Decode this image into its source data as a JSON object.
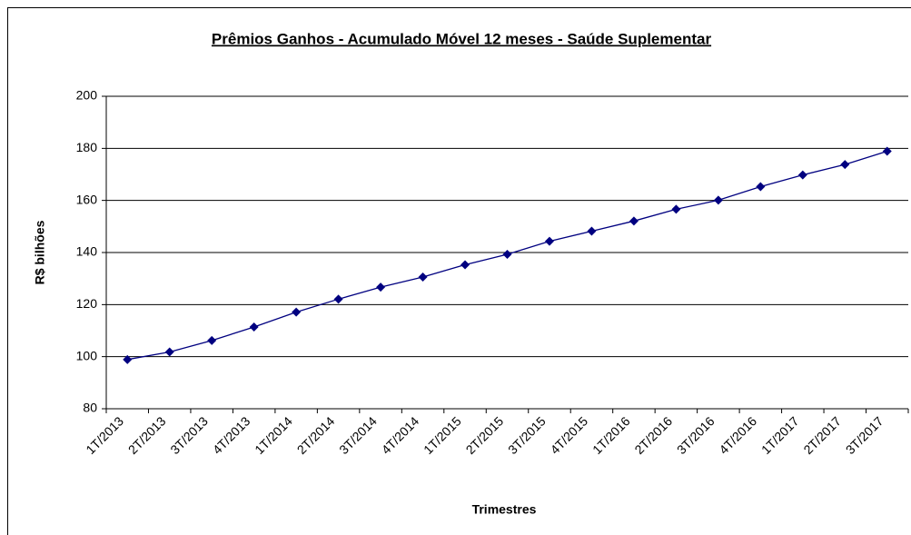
{
  "chart_data": {
    "type": "line",
    "title": "Prêmios Ganhos - Acumulado Móvel 12 meses - Saúde Suplementar",
    "x_label": "Trimestres",
    "y_label": "R$ bilhões",
    "categories": [
      "1T/2013",
      "2T/2013",
      "3T/2013",
      "4T/2013",
      "1T/2014",
      "2T/2014",
      "3T/2014",
      "4T/2014",
      "1T/2015",
      "2T/2015",
      "3T/2015",
      "4T/2015",
      "1T/2016",
      "2T/2016",
      "3T/2016",
      "4T/2016",
      "1T/2017",
      "2T/2017",
      "3T/2017"
    ],
    "series": [
      {
        "name": "Prêmios Ganhos",
        "color": "#000080",
        "values": [
          98.9,
          101.8,
          106.2,
          111.4,
          117.1,
          122.1,
          126.7,
          130.6,
          135.3,
          139.3,
          144.3,
          148.2,
          152.1,
          156.6,
          160.1,
          165.3,
          169.8,
          173.8,
          178.9
        ]
      }
    ],
    "ylim": [
      80,
      200
    ],
    "yticks": [
      80,
      100,
      120,
      140,
      160,
      180,
      200
    ],
    "grid": true
  }
}
